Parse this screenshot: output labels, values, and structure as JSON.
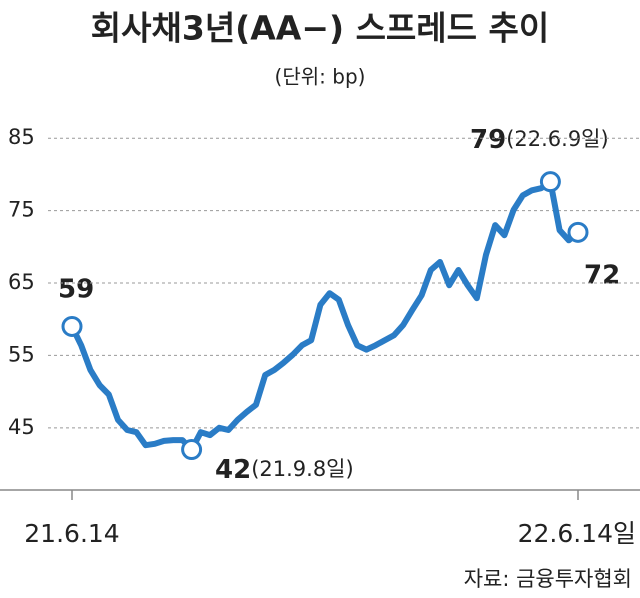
{
  "chart_data": {
    "type": "line",
    "title": "회사채3년(AA−) 스프레드 추이",
    "subtitle": "(단위: bp)",
    "source": "자료: 금융투자협회",
    "categories": [
      "21.6.14",
      null,
      null,
      null,
      null,
      null,
      null,
      null,
      null,
      null,
      null,
      null,
      null,
      null,
      null,
      null,
      null,
      null,
      null,
      null,
      null,
      null,
      null,
      null,
      null,
      null,
      null,
      null,
      null,
      null,
      null,
      null,
      null,
      null,
      null,
      null,
      null,
      null,
      null,
      null,
      null,
      null,
      null,
      null,
      null,
      null,
      null,
      null,
      null,
      null,
      null,
      null,
      null,
      null,
      null,
      "22.6.14일"
    ],
    "series": [
      {
        "color": "#2a7cc6",
        "values": [
          59,
          56.4,
          53,
          50.9,
          49.6,
          46.1,
          44.7,
          44.4,
          42.6,
          42.8,
          43.2,
          43.3,
          43.3,
          42,
          44.4,
          44,
          45,
          44.7,
          46.1,
          47.2,
          48.2,
          52.3,
          53,
          54,
          55.1,
          56.4,
          57.1,
          62,
          63.6,
          62.7,
          59.2,
          56.4,
          55.8,
          56.4,
          57.1,
          57.8,
          59.2,
          61.3,
          63.3,
          66.8,
          67.9,
          64.7,
          66.8,
          64.7,
          62.9,
          68.9,
          73,
          71.6,
          75.1,
          77.1,
          77.8,
          78.1,
          79,
          72.3,
          70.9,
          72
        ]
      }
    ],
    "annotations": [
      "59",
      "42",
      "(21.9.8일)",
      "79",
      "(22.6.9일)",
      "72"
    ],
    "ylim": [
      36,
      90
    ],
    "yticks": [
      45,
      55,
      65,
      75,
      85
    ],
    "grid": true
  }
}
